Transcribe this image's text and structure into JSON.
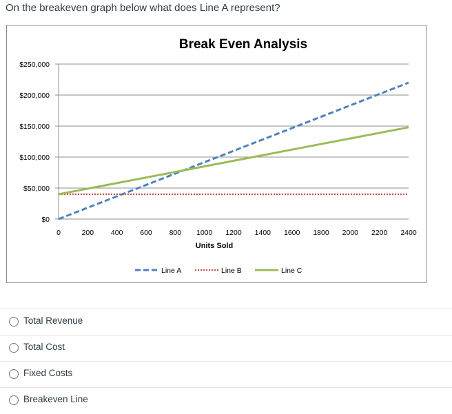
{
  "question": {
    "text": "On the breakeven graph below what does Line A represent?"
  },
  "answers": [
    {
      "label": "Total Revenue"
    },
    {
      "label": "Total Cost"
    },
    {
      "label": "Fixed Costs"
    },
    {
      "label": "Breakeven Line"
    }
  ],
  "chart_data": {
    "type": "line",
    "title": "Break Even Analysis",
    "xlabel": "Units Sold",
    "ylabel": "",
    "xlim": [
      0,
      2400
    ],
    "ylim": [
      0,
      250000
    ],
    "x_ticks": [
      0,
      200,
      400,
      600,
      800,
      1000,
      1200,
      1400,
      1600,
      1800,
      2000,
      2200,
      2400
    ],
    "y_ticks": [
      0,
      50000,
      100000,
      150000,
      200000,
      250000
    ],
    "x_tick_labels": [
      "0",
      "200",
      "400",
      "600",
      "800",
      "1000",
      "1200",
      "1400",
      "1600",
      "1800",
      "2000",
      "2200",
      "2400"
    ],
    "y_tick_labels": [
      "$0",
      "$50,000",
      "$100,000",
      "$150,000",
      "$200,000",
      "$250,000"
    ],
    "grid": "horizontal",
    "legend_position": "bottom",
    "series": [
      {
        "name": "Line A",
        "color": "#4f81bd",
        "dash": "dashed",
        "x": [
          0,
          2400
        ],
        "y": [
          0,
          220000
        ]
      },
      {
        "name": "Line B",
        "color": "#c0504d",
        "dash": "dotted",
        "x": [
          0,
          2400
        ],
        "y": [
          40000,
          40000
        ]
      },
      {
        "name": "Line C",
        "color": "#9bbb59",
        "dash": "solid",
        "x": [
          0,
          2400
        ],
        "y": [
          40000,
          148000
        ]
      }
    ]
  }
}
